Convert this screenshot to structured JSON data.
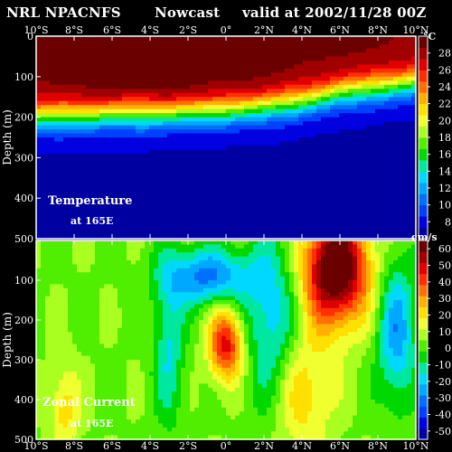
{
  "header": {
    "product": "NRL NPACNFS",
    "run": "Nowcast",
    "valid": "valid at 2002/11/28 00Z"
  },
  "colors": {
    "background": "#000000",
    "frame": "#ffffff",
    "palette": [
      "#6a0000",
      "#a00000",
      "#e00000",
      "#ff3000",
      "#ff7000",
      "#ffb000",
      "#ffe000",
      "#f0ff30",
      "#a8ff20",
      "#50ee00",
      "#00d800",
      "#00e8a0",
      "#00d8ff",
      "#00a8ff",
      "#0070ff",
      "#0040ff",
      "#0000e0",
      "#0000a0"
    ]
  },
  "chart_data": [
    {
      "type": "heatmap",
      "title": "Temperature",
      "subtitle": "at 165E",
      "ylabel": "Depth  (m)",
      "xlabel": "",
      "x_ticks": [
        "10°S",
        "8°S",
        "6°S",
        "4°S",
        "2°S",
        "0°",
        "2°N",
        "4°N",
        "6°N",
        "8°N",
        "10°N"
      ],
      "x_range": [
        -10,
        10
      ],
      "y_ticks": [
        0,
        100,
        200,
        300,
        400,
        500
      ],
      "y_range": [
        0,
        500
      ],
      "colorbar": {
        "unit": "°C",
        "ticks": [
          8,
          10,
          12,
          14,
          16,
          18,
          20,
          22,
          24,
          26,
          28
        ],
        "range": [
          6,
          30
        ]
      },
      "x": [
        -10,
        -8,
        -6,
        -4,
        -2,
        0,
        2,
        4,
        6,
        8,
        10
      ],
      "thermocline_depth_m": [
        200,
        195,
        192,
        190,
        188,
        182,
        175,
        160,
        140,
        125,
        115
      ],
      "sst_c": [
        29,
        29.5,
        30,
        30,
        30,
        29.5,
        29.5,
        29,
        29,
        29,
        28.5
      ],
      "deep_c": [
        7,
        7,
        7,
        7,
        7,
        7,
        7,
        7,
        7,
        7,
        7
      ]
    },
    {
      "type": "heatmap",
      "title": "Zonal Current",
      "subtitle": "at 165E",
      "ylabel": "Depth  (m)",
      "xlabel": "",
      "x_ticks": [
        "10°S",
        "8°S",
        "6°S",
        "4°S",
        "2°S",
        "0°",
        "2°N",
        "4°N",
        "6°N",
        "8°N",
        "10°N"
      ],
      "x_range": [
        -10,
        10
      ],
      "y_ticks": [
        0,
        100,
        200,
        300,
        400,
        500
      ],
      "y_range": [
        0,
        500
      ],
      "colorbar": {
        "unit": "cm/s",
        "ticks": [
          -50,
          -40,
          -30,
          -20,
          -10,
          0,
          10,
          20,
          30,
          40,
          50,
          60
        ],
        "range": [
          -55,
          65
        ]
      },
      "features": [
        {
          "name": "",
          "lat": 5.8,
          "depth_m": 70,
          "value_cm_s": 70,
          "lat_halfwidth": 1.7,
          "depth_halfwidth_m": 140
        },
        {
          "name": "",
          "lat": 0.0,
          "depth_m": 260,
          "value_cm_s": 45,
          "lat_halfwidth": 0.9,
          "depth_halfwidth_m": 90
        },
        {
          "name": "",
          "lat": -1.0,
          "depth_m": 90,
          "value_cm_s": -35,
          "lat_halfwidth": 2.2,
          "depth_halfwidth_m": 70
        },
        {
          "name": "",
          "lat": 2.4,
          "depth_m": 200,
          "value_cm_s": -25,
          "lat_halfwidth": 1.4,
          "depth_halfwidth_m": 220
        },
        {
          "name": "",
          "lat": -3.0,
          "depth_m": 260,
          "value_cm_s": -20,
          "lat_halfwidth": 0.8,
          "depth_halfwidth_m": 200
        },
        {
          "name": "",
          "lat": 9.0,
          "depth_m": 230,
          "value_cm_s": -30,
          "lat_halfwidth": 1.0,
          "depth_halfwidth_m": 180
        },
        {
          "name": "",
          "lat": -8.5,
          "depth_m": 420,
          "value_cm_s": 18,
          "lat_halfwidth": 0.8,
          "depth_halfwidth_m": 110
        },
        {
          "name": "",
          "lat": 4.0,
          "depth_m": 380,
          "value_cm_s": 20,
          "lat_halfwidth": 1.6,
          "depth_halfwidth_m": 160
        }
      ]
    }
  ]
}
